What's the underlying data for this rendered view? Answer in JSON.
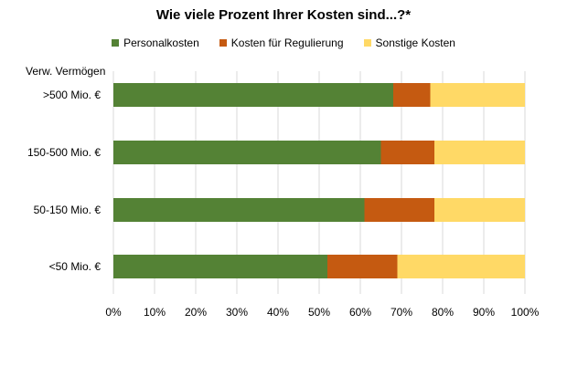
{
  "chart_data": {
    "type": "bar",
    "orientation": "horizontal",
    "stacked": true,
    "title": "Wie viele Prozent Ihrer Kosten sind...?*",
    "ylabel": "Verw. Vermögen",
    "xlabel": "",
    "categories": [
      ">500 Mio. €",
      "150-500 Mio. €",
      "50-150 Mio. €",
      "<50 Mio. €"
    ],
    "series": [
      {
        "name": "Personalkosten",
        "color": "#548235",
        "values": [
          68,
          65,
          61,
          52
        ]
      },
      {
        "name": "Kosten für Regulierung",
        "color": "#C55A11",
        "values": [
          9,
          13,
          17,
          17
        ]
      },
      {
        "name": "Sonstige Kosten",
        "color": "#FFD966",
        "values": [
          23,
          22,
          22,
          31
        ]
      }
    ],
    "xlim": [
      0,
      100
    ],
    "xticks": [
      "0%",
      "10%",
      "20%",
      "30%",
      "40%",
      "50%",
      "60%",
      "70%",
      "80%",
      "90%",
      "100%"
    ],
    "grid": "vertical",
    "legend_position": "top"
  }
}
